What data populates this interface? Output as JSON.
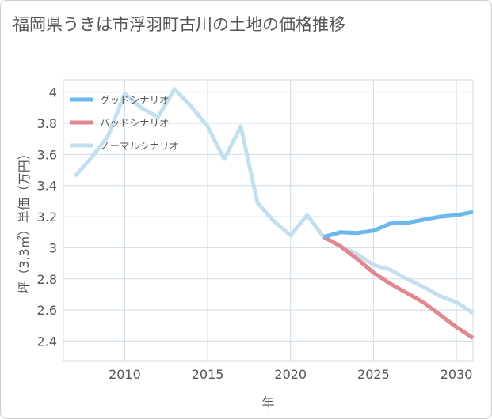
{
  "chart_data": {
    "type": "line",
    "title": "福岡県うきは市浮羽町古川の土地の価格推移",
    "xlabel": "年",
    "ylabel": "坪（3.3㎡）単価（万円）",
    "xlim": [
      2006.3,
      2031
    ],
    "ylim": [
      2.27,
      4.08
    ],
    "x_ticks": [
      2010,
      2015,
      2020,
      2025,
      2030
    ],
    "y_ticks": [
      2.4,
      2.6,
      2.8,
      3,
      3.2,
      3.4,
      3.6,
      3.8,
      4
    ],
    "legend_position": "top-left",
    "series": [
      {
        "name": "グッドシナリオ",
        "color": "#6cb7ec",
        "x": [
          2022,
          2023,
          2024,
          2025,
          2026,
          2027,
          2028,
          2029,
          2030,
          2031
        ],
        "values": [
          3.07,
          3.1,
          3.095,
          3.11,
          3.155,
          3.16,
          3.18,
          3.2,
          3.21,
          3.23
        ]
      },
      {
        "name": "バッドシナリオ",
        "color": "#e0878f",
        "x": [
          2022,
          2023,
          2024,
          2025,
          2026,
          2027,
          2028,
          2029,
          2030,
          2031
        ],
        "values": [
          3.07,
          3.01,
          2.93,
          2.84,
          2.77,
          2.71,
          2.65,
          2.57,
          2.49,
          2.42
        ]
      },
      {
        "name": "ノーマルシナリオ",
        "color": "#c4dfee",
        "x": [
          2007,
          2008,
          2009,
          2010,
          2011,
          2012,
          2013,
          2014,
          2015,
          2016,
          2017,
          2018,
          2019,
          2020,
          2021,
          2022,
          2023,
          2024,
          2025,
          2026,
          2027,
          2028,
          2029,
          2030,
          2031
        ],
        "values": [
          3.46,
          3.58,
          3.72,
          3.99,
          3.9,
          3.84,
          4.02,
          3.91,
          3.78,
          3.57,
          3.78,
          3.29,
          3.17,
          3.08,
          3.21,
          3.07,
          3.01,
          2.96,
          2.89,
          2.86,
          2.8,
          2.75,
          2.69,
          2.65,
          2.58
        ]
      }
    ]
  }
}
